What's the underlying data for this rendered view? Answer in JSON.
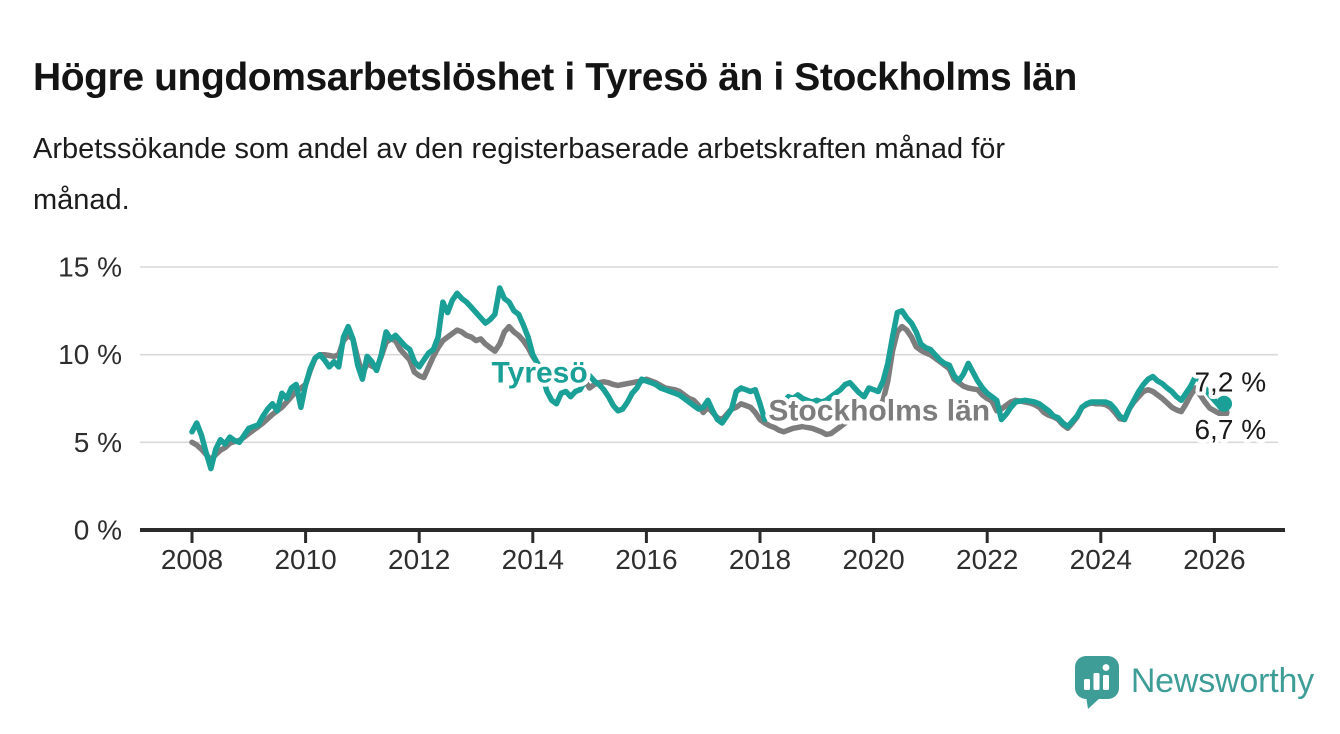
{
  "header": {
    "title": "Högre ungdomsarbetslöshet i Tyresö än i Stockholms län",
    "subtitle_line1": "Arbetssökande som andel av den registerbaserade arbetskraften månad för",
    "subtitle_line2": "månad."
  },
  "branding": {
    "logo_text": "Newsworthy",
    "logo_color": "#3F9D98"
  },
  "colors": {
    "tyreso": "#1AA096",
    "stockholm": "#7D7D7D",
    "grid": "#D9D9D9",
    "axis": "#2B2B2B",
    "tick_text": "#2E2E2E",
    "value_text": "#1A1A1A",
    "background": "#FFFFFF"
  },
  "chart_data": {
    "type": "line",
    "title": "Högre ungdomsarbetslöshet i Tyresö än i Stockholms län",
    "subtitle": "Arbetssökande som andel av den registerbaserade arbetskraften månad för månad.",
    "grid": true,
    "legend_position": "inline-labels",
    "x_axis": {
      "start": 2008.0,
      "step": 0.0833333,
      "unit": "month",
      "ticks": [
        {
          "year": 2008,
          "label": "2008"
        },
        {
          "year": 2010,
          "label": "2010"
        },
        {
          "year": 2012,
          "label": "2012"
        },
        {
          "year": 2014,
          "label": "2014"
        },
        {
          "year": 2016,
          "label": "2016"
        },
        {
          "year": 2018,
          "label": "2018"
        },
        {
          "year": 2020,
          "label": "2020"
        },
        {
          "year": 2022,
          "label": "2022"
        },
        {
          "year": 2024,
          "label": "2024"
        },
        {
          "year": 2026,
          "label": "2026"
        }
      ]
    },
    "y_axis": {
      "min": 0,
      "max": 15,
      "ticks": [
        {
          "value": 0,
          "label": "0 %"
        },
        {
          "value": 5,
          "label": "5 %"
        },
        {
          "value": 10,
          "label": "10 %"
        },
        {
          "value": 15,
          "label": "15 %"
        }
      ]
    },
    "series": [
      {
        "id": "stockholms-lan",
        "name": "Stockholms län",
        "color": "#7D7D7D",
        "values": [
          5.0,
          4.85,
          4.6,
          4.3,
          4.0,
          4.3,
          4.55,
          4.7,
          4.95,
          5.05,
          5.1,
          5.3,
          5.5,
          5.7,
          5.9,
          6.1,
          6.35,
          6.6,
          6.8,
          7.0,
          7.3,
          7.6,
          7.9,
          8.1,
          8.3,
          9.1,
          9.8,
          10.0,
          10.0,
          9.95,
          9.9,
          10.0,
          10.8,
          11.1,
          10.9,
          9.8,
          8.9,
          9.5,
          9.35,
          9.2,
          9.9,
          10.7,
          10.9,
          10.8,
          10.3,
          10.0,
          9.7,
          9.0,
          8.8,
          8.7,
          9.3,
          9.9,
          10.4,
          10.8,
          11.0,
          11.2,
          11.4,
          11.3,
          11.1,
          11.0,
          10.8,
          10.9,
          10.6,
          10.4,
          10.2,
          10.6,
          11.3,
          11.6,
          11.3,
          11.1,
          10.8,
          10.4,
          9.9,
          9.5,
          9.2,
          9.0,
          8.9,
          8.8,
          8.7,
          8.7,
          8.7,
          8.8,
          8.8,
          8.5,
          8.1,
          8.3,
          8.4,
          8.45,
          8.4,
          8.3,
          8.25,
          8.3,
          8.35,
          8.4,
          8.45,
          8.5,
          8.6,
          8.5,
          8.4,
          8.25,
          8.1,
          8.05,
          8.0,
          7.9,
          7.7,
          7.5,
          7.4,
          7.1,
          6.7,
          7.0,
          6.7,
          6.4,
          6.3,
          6.6,
          6.9,
          7.0,
          7.2,
          7.1,
          7.0,
          6.7,
          6.3,
          6.1,
          5.95,
          5.85,
          5.7,
          5.6,
          5.7,
          5.8,
          5.85,
          5.9,
          5.85,
          5.8,
          5.7,
          5.6,
          5.45,
          5.5,
          5.7,
          5.9,
          6.1,
          6.3,
          6.3,
          6.35,
          6.4,
          6.5,
          6.6,
          6.9,
          7.4,
          8.5,
          10.2,
          11.3,
          11.6,
          11.4,
          11.0,
          10.45,
          10.25,
          10.1,
          10.0,
          9.8,
          9.6,
          9.4,
          9.2,
          8.6,
          8.4,
          8.2,
          8.1,
          8.05,
          8.0,
          7.7,
          7.5,
          7.35,
          6.8,
          6.9,
          7.1,
          7.3,
          7.4,
          7.35,
          7.3,
          7.25,
          7.15,
          7.0,
          6.7,
          6.55,
          6.45,
          6.3,
          6.0,
          5.8,
          6.1,
          6.45,
          7.0,
          7.15,
          7.25,
          7.2,
          7.2,
          7.15,
          7.0,
          6.7,
          6.35,
          6.3,
          6.9,
          7.3,
          7.6,
          7.9,
          8.0,
          7.9,
          7.7,
          7.5,
          7.25,
          7.0,
          6.85,
          6.75,
          7.2,
          7.7,
          8.1,
          7.7,
          7.3,
          6.95,
          6.8,
          6.65,
          6.7
        ]
      },
      {
        "id": "tyreso",
        "name": "Tyresö",
        "color": "#1AA096",
        "values": [
          5.6,
          6.1,
          5.4,
          4.4,
          3.5,
          4.6,
          5.15,
          4.9,
          5.3,
          5.1,
          5.0,
          5.4,
          5.8,
          5.9,
          6.0,
          6.5,
          6.9,
          7.2,
          6.8,
          7.8,
          7.5,
          8.1,
          8.3,
          7.0,
          8.3,
          9.2,
          9.8,
          10.0,
          9.7,
          9.3,
          9.6,
          9.3,
          11.0,
          11.6,
          10.9,
          9.4,
          8.6,
          9.9,
          9.6,
          9.1,
          10.0,
          11.3,
          10.9,
          11.1,
          10.8,
          10.5,
          10.3,
          9.6,
          9.3,
          9.7,
          10.1,
          10.3,
          11.0,
          13.0,
          12.4,
          13.1,
          13.5,
          13.2,
          13.0,
          12.7,
          12.4,
          12.1,
          11.8,
          12.0,
          12.3,
          13.8,
          13.2,
          13.0,
          12.5,
          12.3,
          11.7,
          11.0,
          10.0,
          9.5,
          8.8,
          7.9,
          7.4,
          7.2,
          7.8,
          7.9,
          7.6,
          7.9,
          8.0,
          8.5,
          8.8,
          8.5,
          8.3,
          8.0,
          7.6,
          7.1,
          6.8,
          6.9,
          7.3,
          7.8,
          8.1,
          8.6,
          8.5,
          8.4,
          8.3,
          8.1,
          8.0,
          7.9,
          7.8,
          7.7,
          7.5,
          7.3,
          7.1,
          6.9,
          7.0,
          7.4,
          6.8,
          6.3,
          6.1,
          6.5,
          6.9,
          7.9,
          8.1,
          8.0,
          7.9,
          8.0,
          7.2,
          6.3,
          6.6,
          6.8,
          7.0,
          7.3,
          7.6,
          7.5,
          7.7,
          7.5,
          7.4,
          7.3,
          7.4,
          7.3,
          7.4,
          7.6,
          7.8,
          8.0,
          8.3,
          8.4,
          8.1,
          7.8,
          7.6,
          8.1,
          8.0,
          7.9,
          8.5,
          9.5,
          11.0,
          12.4,
          12.5,
          12.1,
          11.8,
          11.3,
          10.6,
          10.4,
          10.3,
          10.0,
          9.7,
          9.5,
          9.4,
          8.8,
          8.5,
          8.9,
          9.5,
          9.0,
          8.5,
          8.1,
          7.8,
          7.6,
          7.4,
          6.3,
          6.6,
          7.0,
          7.3,
          7.35,
          7.4,
          7.35,
          7.3,
          7.2,
          7.0,
          6.8,
          6.5,
          6.4,
          6.1,
          5.9,
          6.2,
          6.5,
          7.0,
          7.2,
          7.3,
          7.3,
          7.3,
          7.3,
          7.2,
          6.9,
          6.5,
          6.3,
          6.9,
          7.4,
          7.9,
          8.3,
          8.6,
          8.75,
          8.5,
          8.35,
          8.1,
          7.9,
          7.6,
          7.4,
          7.8,
          8.2,
          8.75,
          8.5,
          8.1,
          7.7,
          7.4,
          7.1,
          7.2
        ]
      }
    ],
    "end_markers": [
      {
        "series": "Stockholms län",
        "x": 2026.17,
        "y": 6.7,
        "r": 5.5,
        "color": "#7D7D7D"
      },
      {
        "series": "Tyresö",
        "x": 2026.17,
        "y": 7.2,
        "r": 8,
        "color": "#1AA096"
      }
    ],
    "annotations": [
      {
        "id": "series-label-tyreso",
        "text": "Tyresö",
        "x": 2014.12,
        "y": 8.95,
        "color": "#1AA096",
        "weight": 700,
        "size": 30
      },
      {
        "id": "series-label-stockholms-lan",
        "text": "Stockholms län",
        "x": 2020.1,
        "y": 6.8,
        "color": "#7D7D7D",
        "weight": 700,
        "size": 30
      },
      {
        "id": "end-value-tyreso",
        "text": "7,2 %",
        "x": 2026.28,
        "y": 8.45,
        "color": "#1A1A1A",
        "weight": 400,
        "size": 28
      },
      {
        "id": "end-value-stockholms-lan",
        "text": "6,7 %",
        "x": 2026.28,
        "y": 5.72,
        "color": "#1A1A1A",
        "weight": 400,
        "size": 28
      }
    ]
  }
}
